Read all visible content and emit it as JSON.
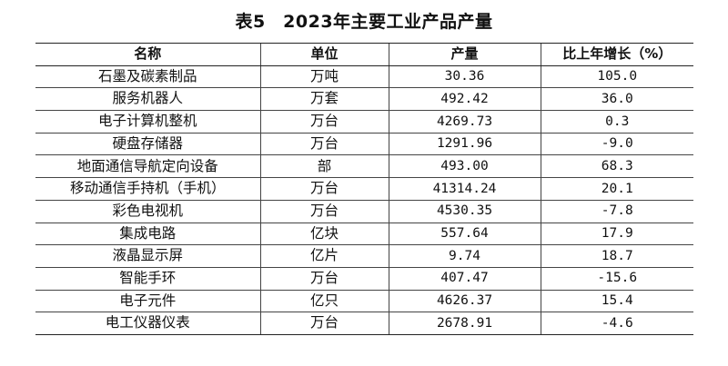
{
  "title": "表5　2023年主要工业产品产量",
  "headers": [
    "名称",
    "单位",
    "产量",
    "比上年增长（%）"
  ],
  "rows": [
    {
      "name": "石墨及碳素制品",
      "unit": "万吨",
      "output": "30.36",
      "growth": "105.0"
    },
    {
      "name": "服务机器人",
      "unit": "万套",
      "output": "492.42",
      "growth": "36.0"
    },
    {
      "name": "电子计算机整机",
      "unit": "万台",
      "output": "4269.73",
      "growth": "0.3"
    },
    {
      "name": "硬盘存储器",
      "unit": "万台",
      "output": "1291.96",
      "growth": "-9.0"
    },
    {
      "name": "地面通信导航定向设备",
      "unit": "部",
      "output": "493.00",
      "growth": "68.3"
    },
    {
      "name": "移动通信手持机（手机）",
      "unit": "万台",
      "output": "41314.24",
      "growth": "20.1"
    },
    {
      "name": "彩色电视机",
      "unit": "万台",
      "output": "4530.35",
      "growth": "-7.8"
    },
    {
      "name": "集成电路",
      "unit": "亿块",
      "output": "557.64",
      "growth": "17.9"
    },
    {
      "name": "液晶显示屏",
      "unit": "亿片",
      "output": "9.74",
      "growth": "18.7"
    },
    {
      "name": "智能手环",
      "unit": "万台",
      "output": "407.47",
      "growth": "-15.6"
    },
    {
      "name": "电子元件",
      "unit": "亿只",
      "output": "4626.37",
      "growth": "15.4"
    },
    {
      "name": "电工仪器仪表",
      "unit": "万台",
      "output": "2678.91",
      "growth": "-4.6"
    }
  ]
}
